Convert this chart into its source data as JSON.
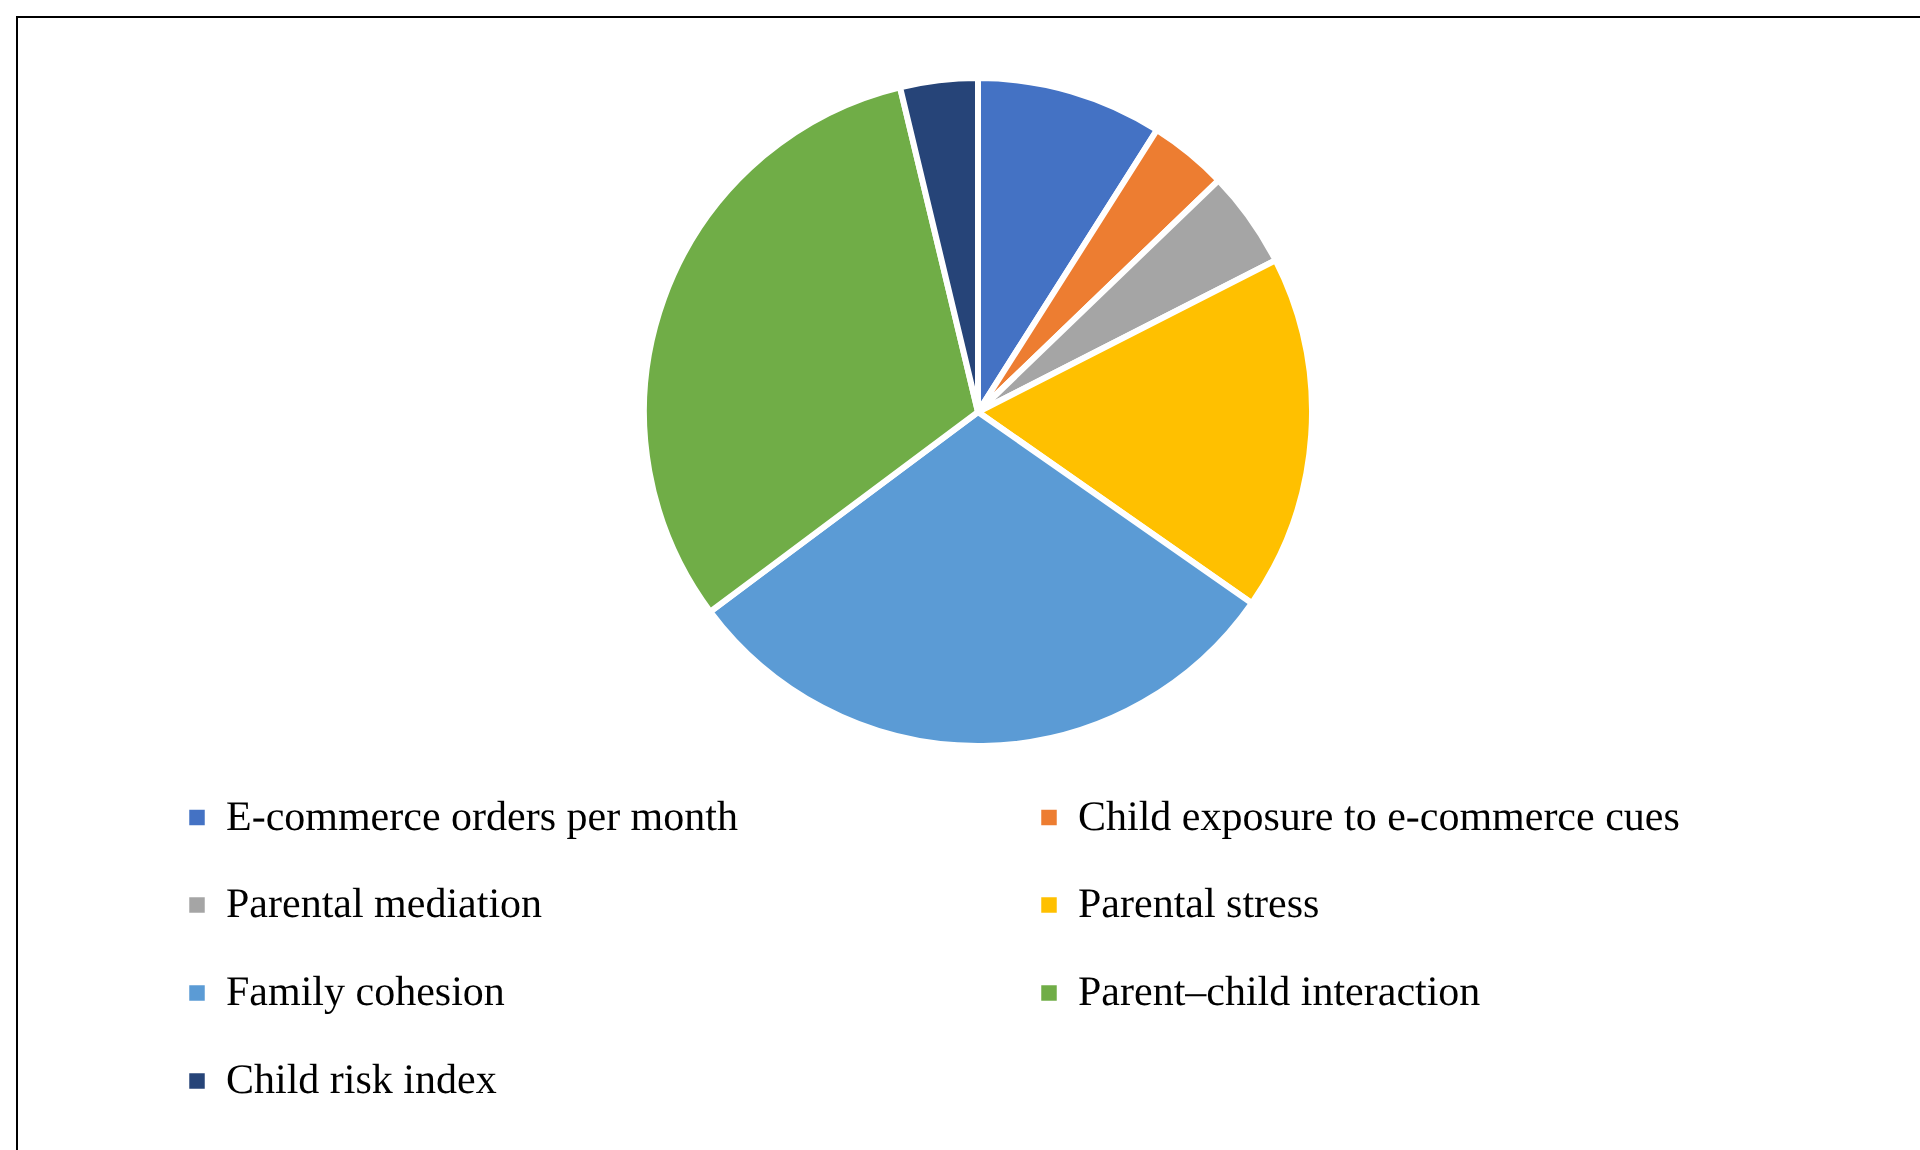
{
  "chart_data": {
    "type": "pie",
    "categories": [
      "E-commerce orders per month",
      "Child exposure to e-commerce cues",
      "Parental mediation",
      "Parental stress",
      "Family cohesion",
      "Parent–child interaction",
      "Child risk index"
    ],
    "values": [
      9,
      3.8,
      4.7,
      17.2,
      30.1,
      31.45,
      3.75
    ],
    "colors": [
      "#4472c4",
      "#ed7d31",
      "#a5a5a5",
      "#ffc000",
      "#5b9bd5",
      "#70ad47",
      "#264478"
    ],
    "legend": "bottom"
  }
}
